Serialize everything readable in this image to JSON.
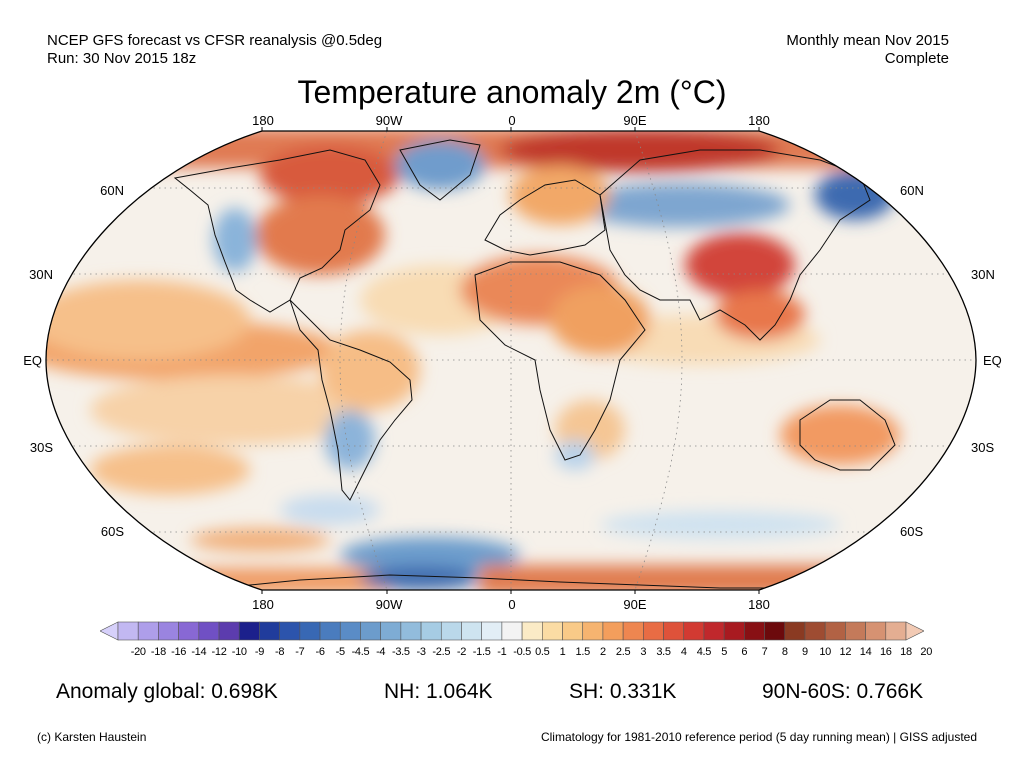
{
  "header": {
    "line1": "NCEP GFS forecast vs CFSR reanalysis @0.5deg",
    "line2": "Run: 30 Nov 2015 18z",
    "right1": "Monthly mean Nov 2015",
    "right2": "Complete"
  },
  "title": "Temperature anomaly 2m (°C)",
  "map": {
    "projection": "Robinson",
    "lon_labels_top": [
      "180",
      "90W",
      "0",
      "90E",
      "180"
    ],
    "lon_labels_bottom": [
      "180",
      "90W",
      "0",
      "90E",
      "180"
    ],
    "lat_labels_left": [
      "60N",
      "30N",
      "EQ",
      "30S",
      "60S"
    ],
    "lat_labels_right": [
      "60N",
      "30N",
      "EQ",
      "30S",
      "60S"
    ],
    "gridlines": "dotted"
  },
  "colorbar": {
    "ticks": [
      "-20",
      "-18",
      "-16",
      "-14",
      "-12",
      "-10",
      "-9",
      "-8",
      "-7",
      "-6",
      "-5",
      "-4.5",
      "-4",
      "-3.5",
      "-3",
      "-2.5",
      "-2",
      "-1.5",
      "-1",
      "-0.5",
      "0.5",
      "1",
      "1.5",
      "2",
      "2.5",
      "3",
      "3.5",
      "4",
      "4.5",
      "5",
      "6",
      "7",
      "8",
      "9",
      "10",
      "12",
      "14",
      "16",
      "18",
      "20"
    ],
    "colors": [
      "#d6d0fa",
      "#c2b8f2",
      "#ae9eea",
      "#9a84e0",
      "#8868d4",
      "#7050c4",
      "#5c3cae",
      "#1c208c",
      "#203c9c",
      "#2c54ac",
      "#3868b4",
      "#4a7cbe",
      "#5a8cc6",
      "#6c9ccc",
      "#7eacd4",
      "#92bcdc",
      "#a6cce4",
      "#bad8ea",
      "#cee4f0",
      "#e2eef6",
      "#f3f3f3",
      "#fbebc6",
      "#fbdca4",
      "#f9ca88",
      "#f6b470",
      "#f39e5c",
      "#ee8650",
      "#e86c44",
      "#de523a",
      "#d23a32",
      "#c0282c",
      "#a81a20",
      "#881014",
      "#6c0a0c",
      "#8a3a22",
      "#9e4c32",
      "#b26244",
      "#c47a5a",
      "#d69272",
      "#e4ae92",
      "#f2cab4"
    ]
  },
  "stats": {
    "global": "Anomaly global: 0.698K",
    "nh": "NH: 1.064K",
    "sh": "SH: 0.331K",
    "arctic": "90N-60S: 0.766K"
  },
  "footer": {
    "left": "(c) Karsten Haustein",
    "right": "Climatology for 1981-2010 reference period (5 day running mean) | GISS adjusted"
  }
}
